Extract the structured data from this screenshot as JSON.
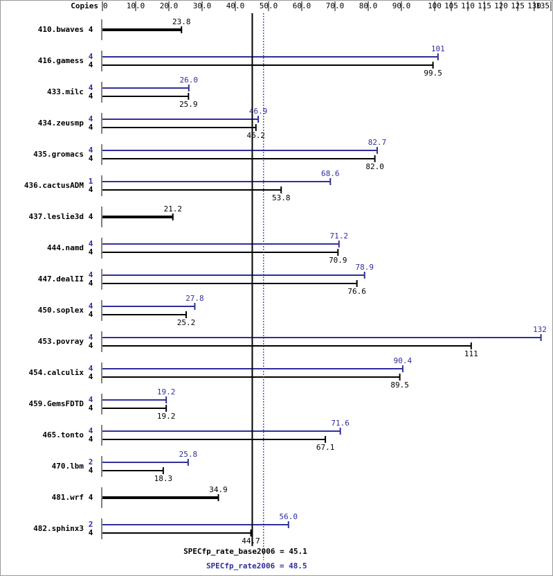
{
  "chart_data": {
    "type": "bar",
    "orientation": "horizontal",
    "copies_label": "Copies",
    "categories": [
      "410.bwaves",
      "416.gamess",
      "433.milc",
      "434.zeusmp",
      "435.gromacs",
      "436.cactusADM",
      "437.leslie3d",
      "444.namd",
      "447.dealII",
      "450.soplex",
      "453.povray",
      "454.calculix",
      "459.GemsFDTD",
      "465.tonto",
      "470.lbm",
      "481.wrf",
      "482.sphinx3"
    ],
    "series": [
      {
        "name": "SPECfp_rate2006",
        "color": "#2e2e9a",
        "values": [
          null,
          101,
          26.0,
          46.9,
          82.7,
          68.6,
          null,
          71.2,
          78.9,
          27.8,
          132,
          90.4,
          19.2,
          71.6,
          25.8,
          null,
          56.0
        ],
        "value_labels": [
          null,
          "101",
          "26.0",
          "46.9",
          "82.7",
          "68.6",
          null,
          "71.2",
          "78.9",
          "27.8",
          "132",
          "90.4",
          "19.2",
          "71.6",
          "25.8",
          null,
          "56.0"
        ],
        "copies": [
          null,
          4,
          4,
          4,
          4,
          1,
          null,
          4,
          4,
          4,
          4,
          4,
          4,
          4,
          2,
          null,
          2
        ]
      },
      {
        "name": "SPECfp_rate_base2006",
        "color": "#000000",
        "values": [
          23.8,
          99.5,
          25.9,
          46.2,
          82.0,
          53.8,
          21.2,
          70.9,
          76.6,
          25.2,
          111,
          89.5,
          19.2,
          67.1,
          18.3,
          34.9,
          44.7
        ],
        "value_labels": [
          "23.8",
          "99.5",
          "25.9",
          "46.2",
          "82.0",
          "53.8",
          "21.2",
          "70.9",
          "76.6",
          "25.2",
          "111",
          "89.5",
          "19.2",
          "67.1",
          "18.3",
          "34.9",
          "44.7"
        ],
        "copies": [
          4,
          4,
          4,
          4,
          4,
          4,
          4,
          4,
          4,
          4,
          4,
          4,
          4,
          4,
          4,
          4,
          4
        ]
      }
    ],
    "xlim": [
      0,
      135
    ],
    "xticks": [
      0,
      {
        "value": 10,
        "label": "10.0"
      },
      {
        "value": 20,
        "label": "20.0"
      },
      {
        "value": 30,
        "label": "30.0"
      },
      {
        "value": 40,
        "label": "40.0"
      },
      {
        "value": 50,
        "label": "50.0"
      },
      {
        "value": 60,
        "label": "60.0"
      },
      {
        "value": 70,
        "label": "70.0"
      },
      {
        "value": 80,
        "label": "80.0"
      },
      {
        "value": 90,
        "label": "90.0"
      },
      100,
      105,
      110,
      115,
      120,
      125,
      130,
      135
    ],
    "reference_lines": [
      {
        "label": "SPECfp_rate_base2006 =",
        "value": 45.1,
        "color": "#000000",
        "style": "solid"
      },
      {
        "label": "SPECfp_rate2006 =",
        "value": 48.5,
        "color": "#2e2e9a",
        "style": "dotted"
      }
    ]
  }
}
